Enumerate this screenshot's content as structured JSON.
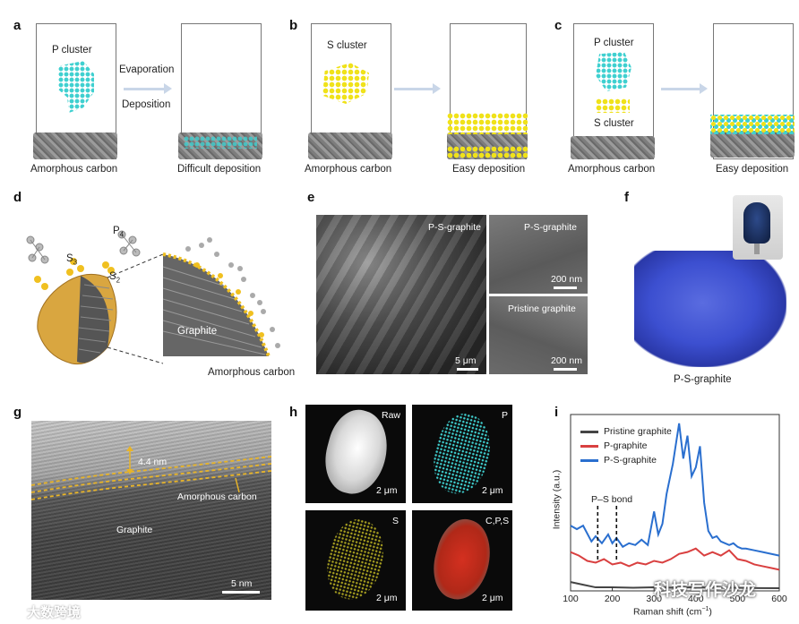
{
  "panels": {
    "a": {
      "label": "a",
      "cluster": "P cluster",
      "arrow_top": "Evaporation",
      "arrow_bottom": "Deposition",
      "left_caption": "Amorphous carbon",
      "right_caption": "Difficult deposition"
    },
    "b": {
      "label": "b",
      "cluster": "S cluster",
      "left_caption": "Amorphous carbon",
      "right_caption": "Easy deposition"
    },
    "c": {
      "label": "c",
      "cluster_top": "P cluster",
      "cluster_bottom": "S cluster",
      "left_caption": "Amorphous carbon",
      "right_caption": "Easy deposition"
    },
    "d": {
      "label": "d",
      "p4": "P",
      "p4_sub": "4",
      "s3": "S",
      "s3_sub": "3",
      "s2": "S",
      "s2_sub": "2",
      "graphite": "Graphite",
      "amorphous": "Amorphous carbon"
    },
    "e": {
      "label": "e",
      "main_label": "P-S-graphite",
      "main_scale": "5 μm",
      "tr_label": "P-S-graphite",
      "tr_scale": "200 nm",
      "br_label": "Pristine graphite",
      "br_scale": "200 nm"
    },
    "f": {
      "label": "f",
      "caption": "P-S-graphite"
    },
    "g": {
      "label": "g",
      "thickness": "4.4 nm",
      "amorphous": "Amorphous carbon",
      "graphite": "Graphite",
      "scale": "5 nm"
    },
    "h": {
      "label": "h",
      "tiles": [
        {
          "name": "Raw",
          "scale": "2 μm"
        },
        {
          "name": "P",
          "scale": "2 μm"
        },
        {
          "name": "S",
          "scale": "2 μm"
        },
        {
          "name": "C,P,S",
          "scale": "2 μm"
        }
      ]
    },
    "i": {
      "label": "i",
      "ps_bond": "P–S bond",
      "ylabel": "Intensity (a.u.)",
      "xlabel_main": "Raman shift (cm",
      "xlabel_sup": "−1",
      "xlabel_end": ")"
    }
  },
  "chart_data": {
    "type": "line",
    "xlabel": "Raman shift (cm−1)",
    "ylabel": "Intensity (a.u.)",
    "xlim": [
      100,
      600
    ],
    "x_ticks": [
      "100",
      "200",
      "300",
      "400",
      "500",
      "600"
    ],
    "legend_position": "top-left",
    "series": [
      {
        "name": "Pristine graphite",
        "color": "#444444",
        "x": [
          100,
          130,
          160,
          200,
          250,
          300,
          350,
          400,
          450,
          500,
          550,
          600
        ],
        "y": [
          0.05,
          0.035,
          0.02,
          0.02,
          0.018,
          0.02,
          0.018,
          0.02,
          0.018,
          0.018,
          0.016,
          0.015
        ]
      },
      {
        "name": "P-graphite",
        "color": "#d94040",
        "x": [
          100,
          120,
          140,
          160,
          180,
          200,
          220,
          240,
          260,
          280,
          300,
          320,
          340,
          360,
          380,
          400,
          420,
          440,
          460,
          480,
          500,
          520,
          540,
          560,
          580,
          600
        ],
        "y": [
          0.22,
          0.2,
          0.17,
          0.16,
          0.18,
          0.15,
          0.16,
          0.14,
          0.16,
          0.15,
          0.17,
          0.16,
          0.18,
          0.21,
          0.22,
          0.24,
          0.2,
          0.22,
          0.2,
          0.23,
          0.18,
          0.17,
          0.15,
          0.14,
          0.13,
          0.12
        ]
      },
      {
        "name": "P-S-graphite",
        "color": "#2a6fcf",
        "x": [
          100,
          115,
          130,
          150,
          160,
          175,
          190,
          200,
          210,
          225,
          240,
          255,
          270,
          285,
          300,
          310,
          320,
          330,
          345,
          360,
          370,
          380,
          390,
          400,
          410,
          420,
          430,
          440,
          450,
          460,
          470,
          480,
          490,
          500,
          510,
          520,
          540,
          560,
          580,
          600
        ],
        "y": [
          0.37,
          0.35,
          0.37,
          0.28,
          0.31,
          0.27,
          0.32,
          0.27,
          0.3,
          0.25,
          0.27,
          0.26,
          0.29,
          0.26,
          0.45,
          0.32,
          0.38,
          0.55,
          0.72,
          0.95,
          0.75,
          0.88,
          0.65,
          0.7,
          0.82,
          0.5,
          0.34,
          0.3,
          0.31,
          0.28,
          0.27,
          0.26,
          0.27,
          0.25,
          0.24,
          0.24,
          0.23,
          0.22,
          0.21,
          0.2
        ]
      }
    ],
    "annotations": [
      "P–S bond"
    ]
  },
  "watermark_left": "大数跨境",
  "watermark_right": "科技写作沙龙"
}
